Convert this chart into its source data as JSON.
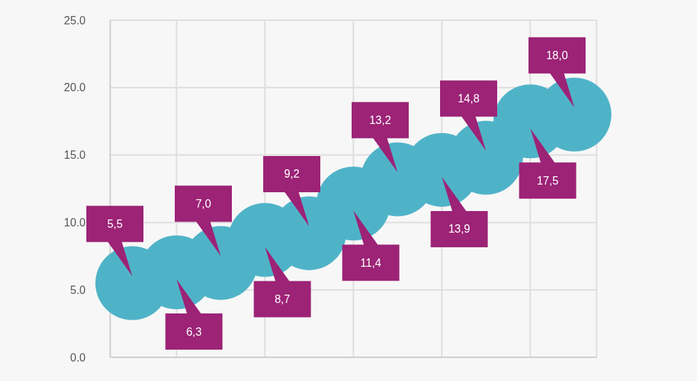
{
  "chart_data": {
    "type": "scatter",
    "categories": [
      null,
      null,
      null,
      null,
      null,
      null,
      null,
      null,
      null,
      null,
      null
    ],
    "series": [
      {
        "color": "#4fb3c8",
        "values": [
          5.5,
          6.3,
          7.0,
          8.7,
          9.2,
          11.4,
          13.2,
          13.9,
          14.8,
          17.5,
          18.0
        ],
        "value_labels": [
          "5,5",
          "6,3",
          "7,0",
          "8,7",
          "9,2",
          "11,4",
          "13,2",
          "13,9",
          "14,8",
          "17,5",
          "18,0"
        ]
      }
    ],
    "ylim": [
      0,
      25
    ],
    "yticks": [
      {
        "value": 0,
        "label": "0.0"
      },
      {
        "value": 5,
        "label": "5.0"
      },
      {
        "value": 10,
        "label": "10.0"
      },
      {
        "value": 15,
        "label": "15.0"
      },
      {
        "value": 20,
        "label": "20.0"
      },
      {
        "value": 25,
        "label": "25.0"
      }
    ],
    "grid": true,
    "marker": "circle"
  }
}
